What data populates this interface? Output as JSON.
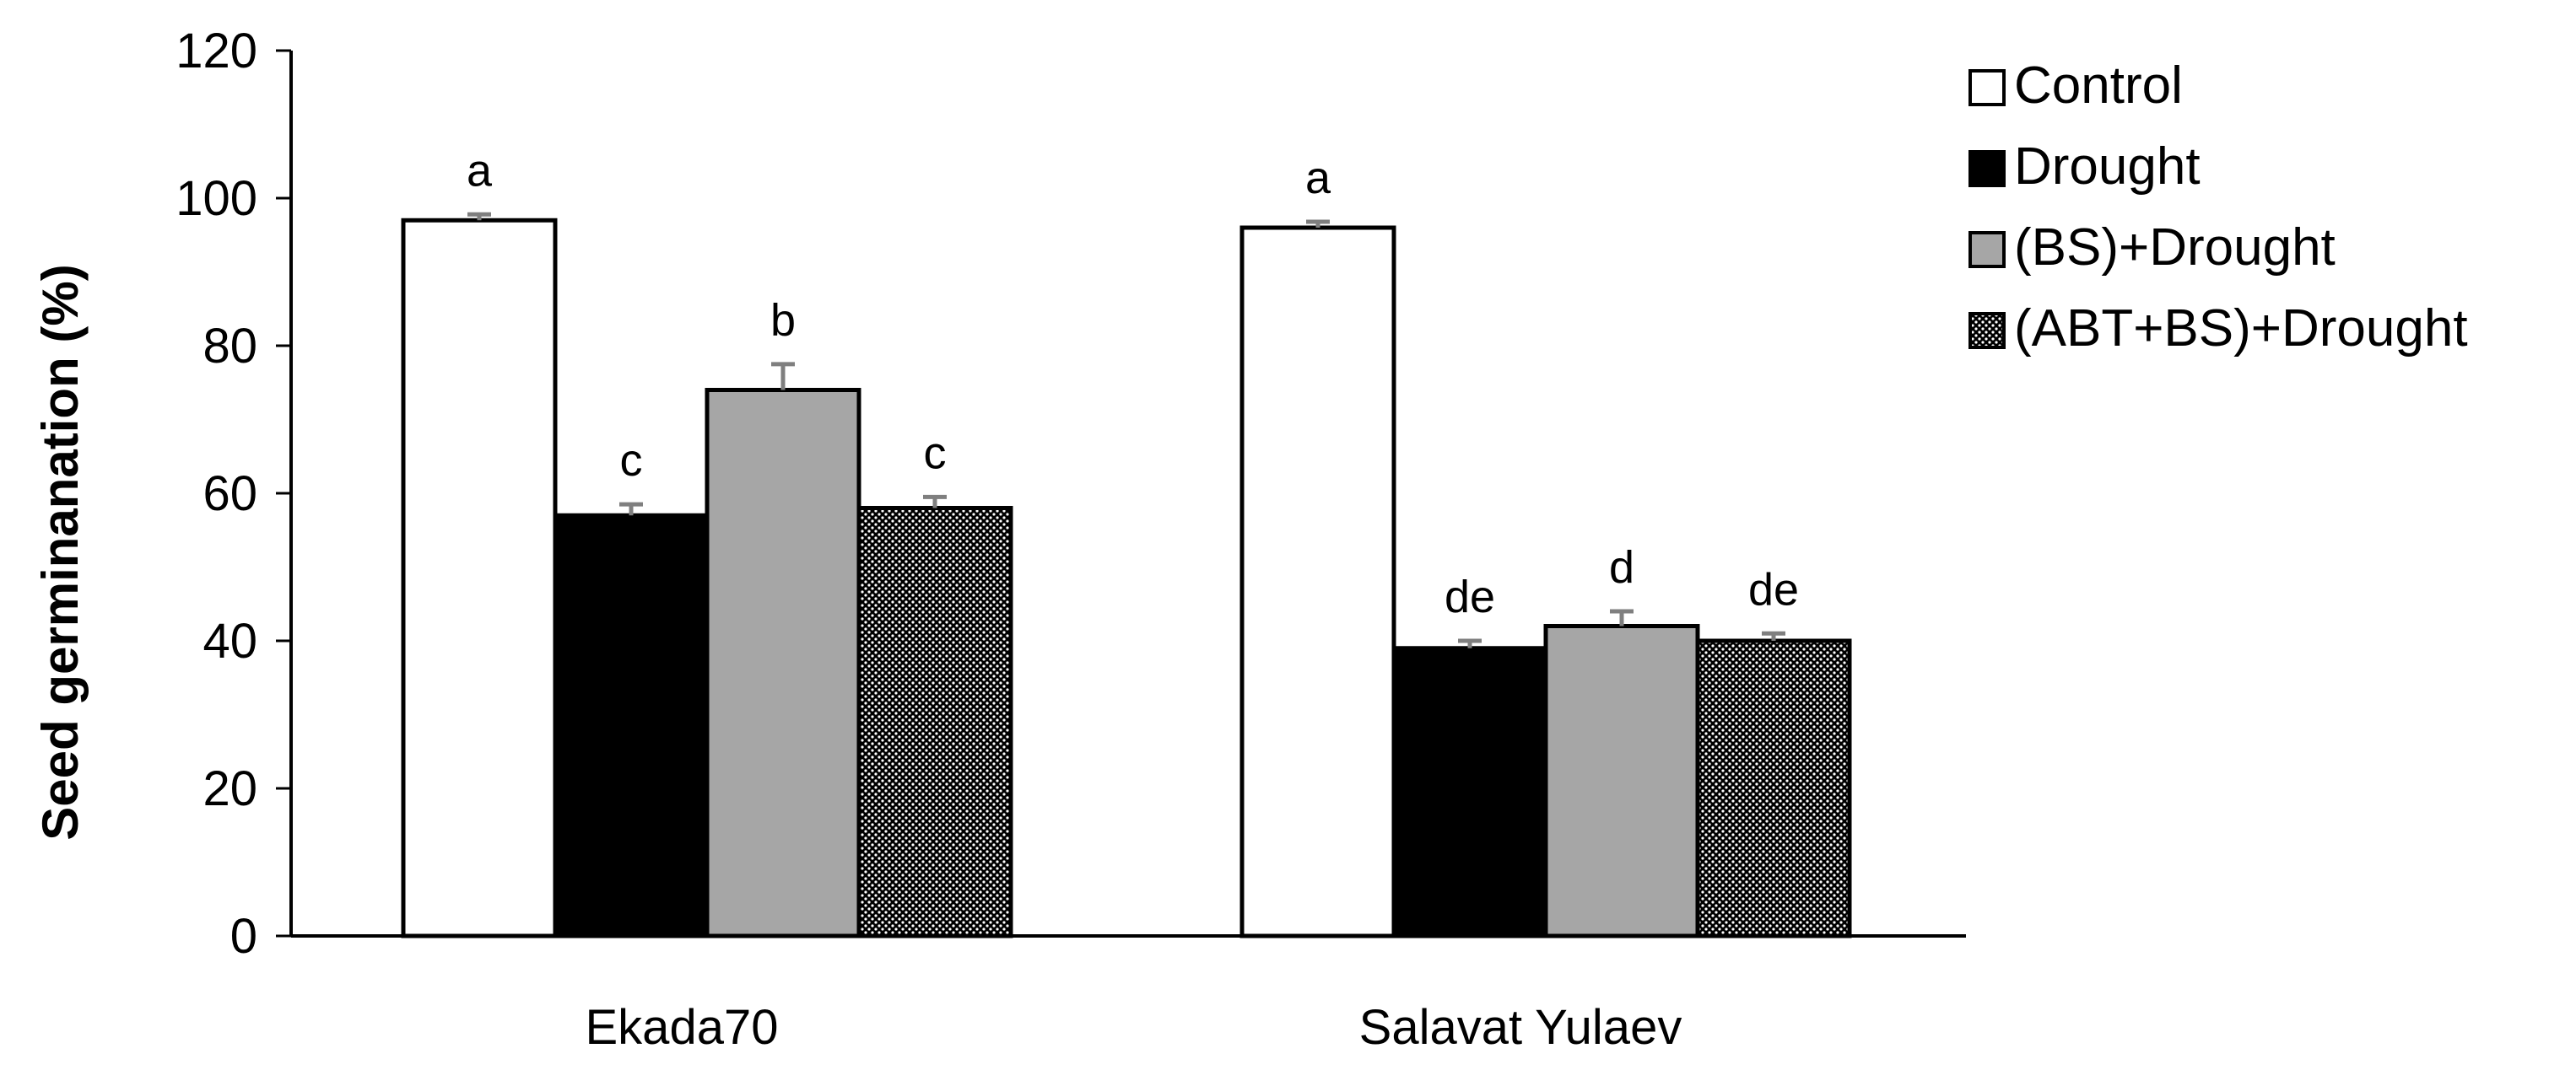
{
  "chart_data": {
    "type": "bar",
    "title": "",
    "xlabel": "",
    "ylabel": "Seed germinanation (%)",
    "ylim": [
      0,
      120
    ],
    "yticks": [
      0,
      20,
      40,
      60,
      80,
      100,
      120
    ],
    "grid": false,
    "legend_position": "top-right",
    "categories": [
      "Ekada70",
      "Salavat Yulaev"
    ],
    "series": [
      {
        "name": "Control",
        "fill": "white",
        "values": [
          97,
          96
        ],
        "errors": [
          0.8,
          0.8
        ],
        "labels": [
          "a",
          "a"
        ]
      },
      {
        "name": "Drought",
        "fill": "black",
        "values": [
          57,
          39
        ],
        "errors": [
          1.5,
          1.0
        ],
        "labels": [
          "c",
          "de"
        ]
      },
      {
        "name": "(BS)+Drought",
        "fill": "gray",
        "values": [
          74,
          42
        ],
        "errors": [
          3.5,
          2.0
        ],
        "labels": [
          "b",
          "d"
        ]
      },
      {
        "name": "(ABT+BS)+Drought",
        "fill": "dotted",
        "values": [
          58,
          40
        ],
        "errors": [
          1.5,
          1.0
        ],
        "labels": [
          "c",
          "de"
        ]
      }
    ],
    "colors": {
      "white": "#ffffff",
      "black": "#000000",
      "gray": "#a6a6a6",
      "dotted_bg": "#000000",
      "dotted_fg": "#ffffff",
      "error_bar": "#7f7f7f"
    }
  }
}
